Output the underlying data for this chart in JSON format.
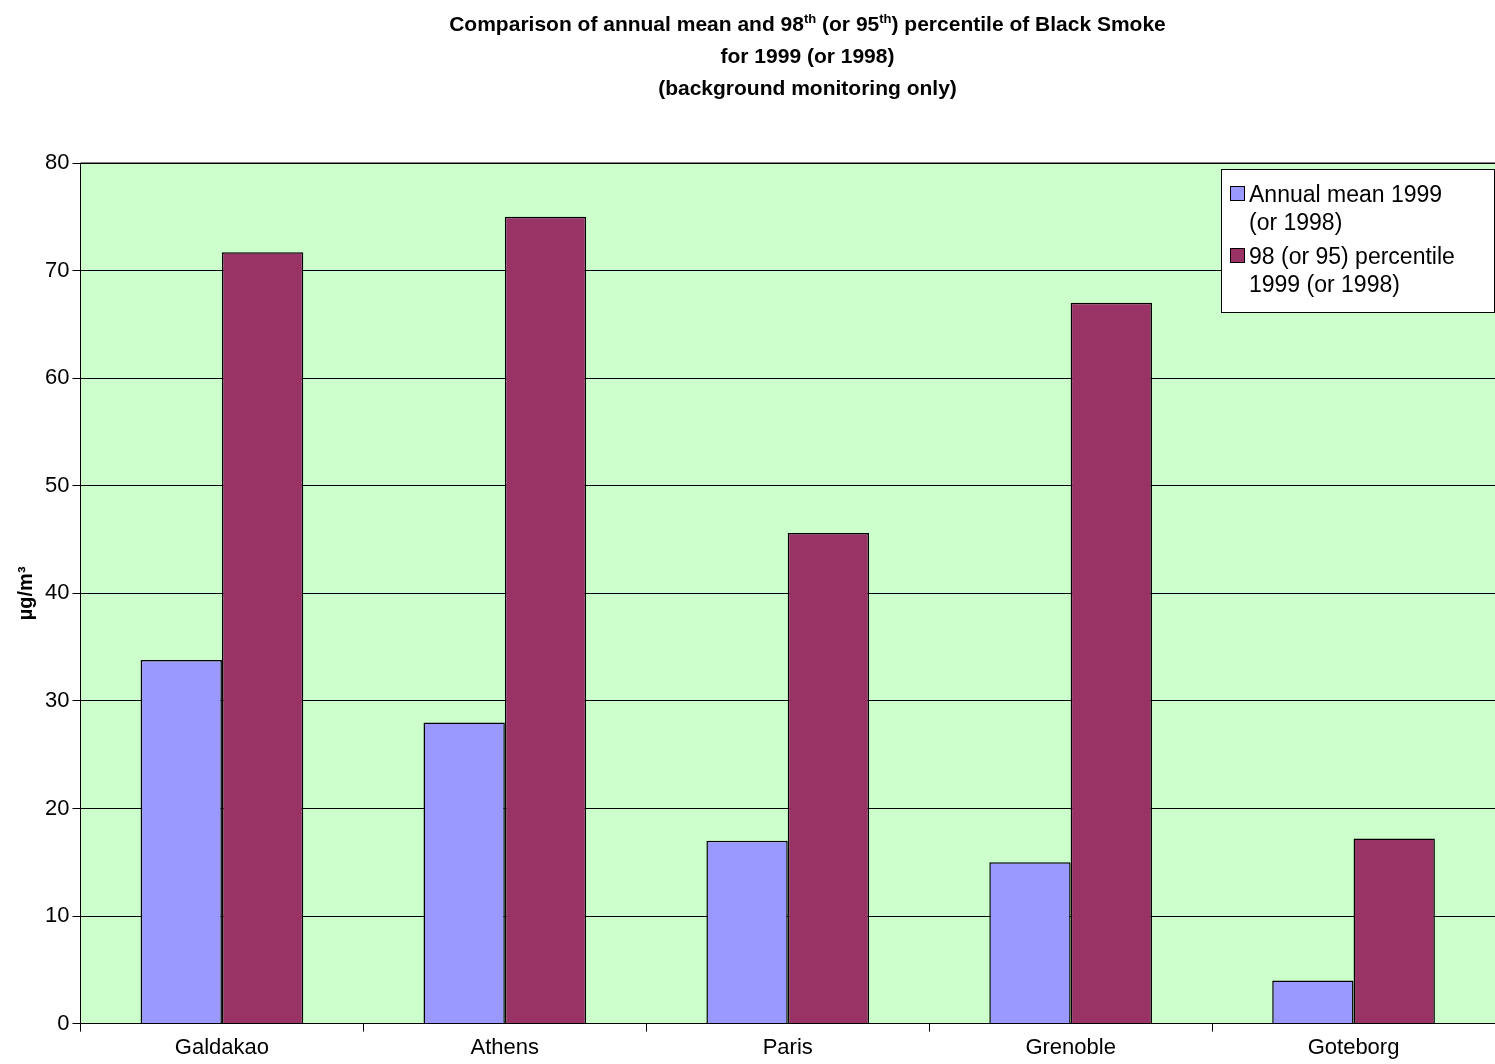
{
  "chart_data": {
    "type": "bar",
    "title": "Comparison of annual mean and 98$^{th}$ (or 95$^{th}$) percentile of Black Smoke\nfor 1999 (or 1998)\n(background monitoring only)",
    "ylabel": "µg/m³",
    "categories": [
      "Galdakao",
      "Athens",
      "Paris",
      "Grenoble",
      "Goteborg"
    ],
    "series": [
      {
        "name": "Annual mean 1999 (or 1998)",
        "color": "#9999ff",
        "values": [
          33.8,
          28,
          17,
          15,
          4
        ]
      },
      {
        "name": "98 (or 95) percentile 1999 (or 1998)",
        "color": "#993366",
        "values": [
          71.7,
          75,
          45.6,
          67,
          17.2
        ]
      }
    ],
    "ylim": [
      0,
      80
    ],
    "yticks": [
      0,
      10,
      20,
      30,
      40,
      50,
      60,
      70,
      80
    ],
    "grid": "y",
    "legend": "top right"
  }
}
